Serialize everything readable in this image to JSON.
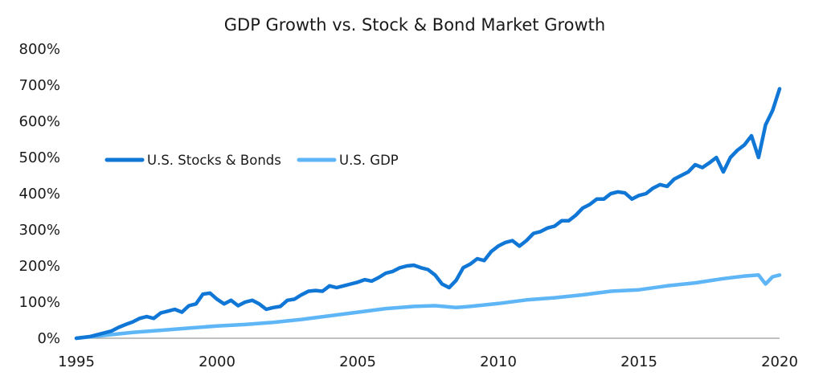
{
  "chart_data": {
    "type": "line",
    "title": "GDP Growth vs. Stock & Bond Market Growth",
    "xlabel": "",
    "ylabel": "",
    "xlim": [
      1995,
      2020
    ],
    "ylim": [
      0,
      800
    ],
    "x_ticks": [
      1995,
      2000,
      2005,
      2010,
      2015,
      2020
    ],
    "x_tick_labels": [
      "1995",
      "2000",
      "2005",
      "2010",
      "2015",
      "2020"
    ],
    "y_ticks": [
      0,
      100,
      200,
      300,
      400,
      500,
      600,
      700,
      800
    ],
    "y_tick_labels": [
      "0%",
      "100%",
      "200%",
      "300%",
      "400%",
      "500%",
      "600%",
      "700%",
      "800%"
    ],
    "grid": false,
    "legend_position": "left-middle",
    "series": [
      {
        "name": "U.S. Stocks & Bonds",
        "color": "#1177d6",
        "x": [
          1995.0,
          1995.5,
          1996.0,
          1996.25,
          1996.5,
          1996.75,
          1997.0,
          1997.25,
          1997.5,
          1997.75,
          1998.0,
          1998.25,
          1998.5,
          1998.75,
          1999.0,
          1999.25,
          1999.5,
          1999.75,
          2000.0,
          2000.25,
          2000.5,
          2000.75,
          2001.0,
          2001.25,
          2001.5,
          2001.75,
          2002.0,
          2002.25,
          2002.5,
          2002.75,
          2003.0,
          2003.25,
          2003.5,
          2003.75,
          2004.0,
          2004.25,
          2004.5,
          2004.75,
          2005.0,
          2005.25,
          2005.5,
          2005.75,
          2006.0,
          2006.25,
          2006.5,
          2006.75,
          2007.0,
          2007.25,
          2007.5,
          2007.75,
          2008.0,
          2008.25,
          2008.5,
          2008.75,
          2009.0,
          2009.25,
          2009.5,
          2009.75,
          2010.0,
          2010.25,
          2010.5,
          2010.75,
          2011.0,
          2011.25,
          2011.5,
          2011.75,
          2012.0,
          2012.25,
          2012.5,
          2012.75,
          2013.0,
          2013.25,
          2013.5,
          2013.75,
          2014.0,
          2014.25,
          2014.5,
          2014.75,
          2015.0,
          2015.25,
          2015.5,
          2015.75,
          2016.0,
          2016.25,
          2016.5,
          2016.75,
          2017.0,
          2017.25,
          2017.5,
          2017.75,
          2018.0,
          2018.25,
          2018.5,
          2018.75,
          2019.0,
          2019.25,
          2019.5,
          2019.75,
          2020.0
        ],
        "values": [
          0,
          5,
          15,
          20,
          30,
          38,
          45,
          55,
          60,
          55,
          70,
          75,
          80,
          72,
          90,
          95,
          122,
          125,
          108,
          95,
          105,
          90,
          100,
          105,
          95,
          80,
          85,
          88,
          105,
          108,
          120,
          130,
          132,
          130,
          145,
          140,
          145,
          150,
          155,
          162,
          158,
          168,
          180,
          185,
          195,
          200,
          202,
          195,
          190,
          175,
          150,
          140,
          160,
          195,
          205,
          220,
          215,
          240,
          255,
          265,
          270,
          255,
          270,
          290,
          295,
          305,
          310,
          325,
          325,
          340,
          360,
          370,
          385,
          385,
          400,
          405,
          402,
          385,
          395,
          400,
          415,
          425,
          420,
          440,
          450,
          460,
          480,
          472,
          485,
          500,
          460,
          500,
          520,
          535,
          560,
          500,
          590,
          630,
          690
        ]
      },
      {
        "name": "U.S. GDP",
        "color": "#5fb6f7",
        "x": [
          1995.0,
          1996.0,
          1997.0,
          1998.0,
          1999.0,
          2000.0,
          2001.0,
          2002.0,
          2003.0,
          2004.0,
          2005.0,
          2006.0,
          2007.0,
          2007.75,
          2008.5,
          2009.0,
          2010.0,
          2011.0,
          2012.0,
          2013.0,
          2014.0,
          2015.0,
          2016.0,
          2017.0,
          2018.0,
          2018.75,
          2019.25,
          2019.5,
          2019.75,
          2020.0
        ],
        "values": [
          0,
          8,
          16,
          22,
          28,
          34,
          38,
          44,
          52,
          62,
          72,
          82,
          88,
          90,
          85,
          88,
          96,
          106,
          112,
          120,
          130,
          134,
          145,
          153,
          165,
          172,
          175,
          150,
          170,
          175
        ]
      }
    ]
  }
}
